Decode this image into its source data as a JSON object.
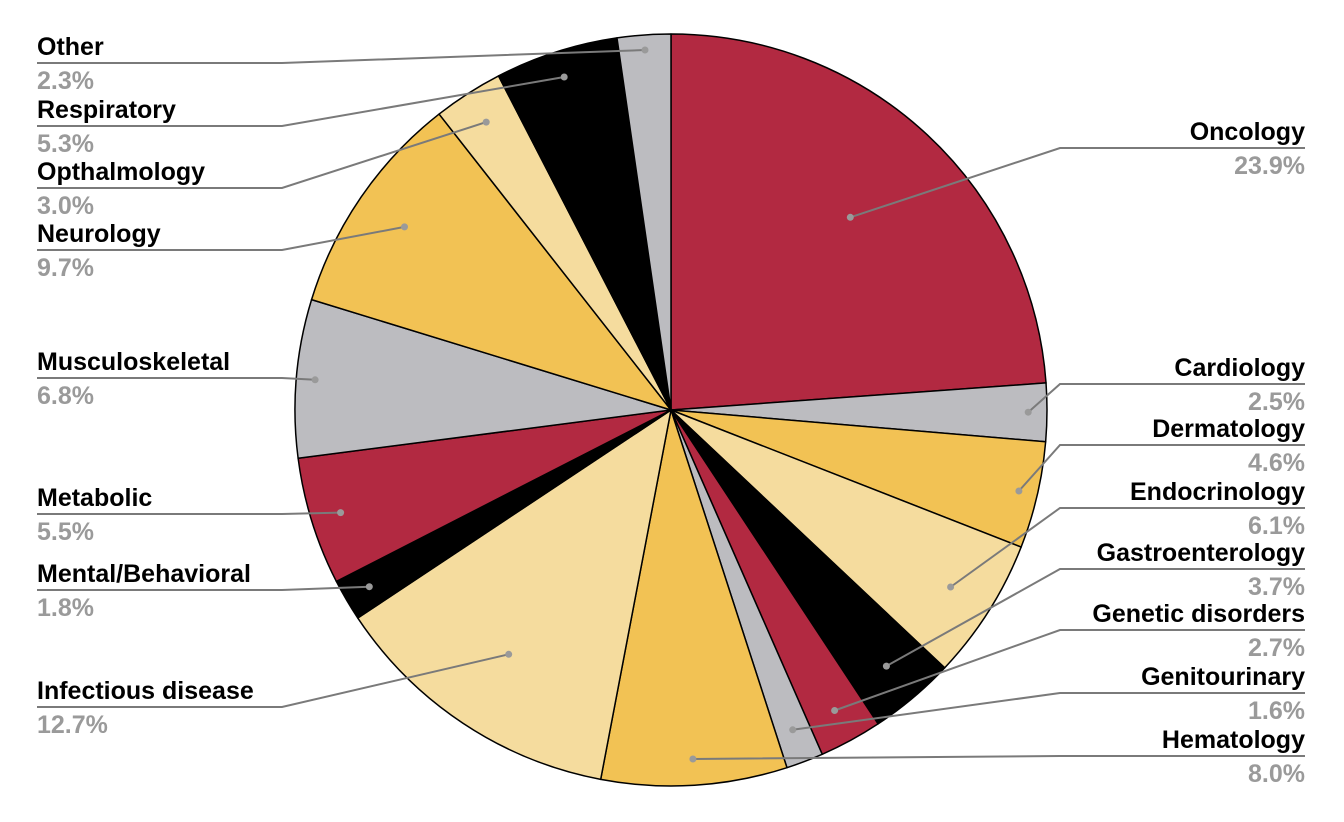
{
  "chart_data": {
    "type": "pie",
    "slices": [
      {
        "label": "Oncology",
        "value": 23.9,
        "pct_label": "23.9%",
        "color": "#b22941"
      },
      {
        "label": "Cardiology",
        "value": 2.5,
        "pct_label": "2.5%",
        "color": "#bcbcc0"
      },
      {
        "label": "Dermatology",
        "value": 4.6,
        "pct_label": "4.6%",
        "color": "#f2c254"
      },
      {
        "label": "Endocrinology",
        "value": 6.1,
        "pct_label": "6.1%",
        "color": "#f5dc9e"
      },
      {
        "label": "Gastroenterology",
        "value": 3.7,
        "pct_label": "3.7%",
        "color": "#000000"
      },
      {
        "label": "Genetic disorders",
        "value": 2.7,
        "pct_label": "2.7%",
        "color": "#b22941"
      },
      {
        "label": "Genitourinary",
        "value": 1.6,
        "pct_label": "1.6%",
        "color": "#bcbcc0"
      },
      {
        "label": "Hematology",
        "value": 8.0,
        "pct_label": "8.0%",
        "color": "#f2c254"
      },
      {
        "label": "Infectious disease",
        "value": 12.7,
        "pct_label": "12.7%",
        "color": "#f5dc9e"
      },
      {
        "label": "Mental/Behavioral",
        "value": 1.8,
        "pct_label": "1.8%",
        "color": "#000000"
      },
      {
        "label": "Metabolic",
        "value": 5.5,
        "pct_label": "5.5%",
        "color": "#b22941"
      },
      {
        "label": "Musculoskeletal",
        "value": 6.8,
        "pct_label": "6.8%",
        "color": "#bcbcc0"
      },
      {
        "label": "Neurology",
        "value": 9.7,
        "pct_label": "9.7%",
        "color": "#f2c254"
      },
      {
        "label": "Opthalmology",
        "value": 3.0,
        "pct_label": "3.0%",
        "color": "#f5dc9e"
      },
      {
        "label": "Respiratory",
        "value": 5.3,
        "pct_label": "5.3%",
        "color": "#000000"
      },
      {
        "label": "Other",
        "value": 2.3,
        "pct_label": "2.3%",
        "color": "#bcbcc0"
      }
    ]
  }
}
